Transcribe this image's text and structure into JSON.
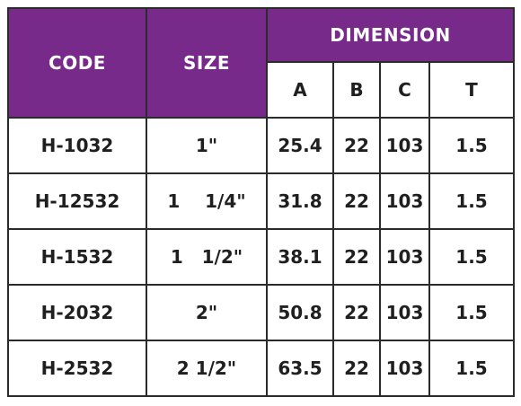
{
  "table": {
    "headers": {
      "code": "CODE",
      "size": "SIZE",
      "dimension": "DIMENSION",
      "sub": [
        "A",
        "B",
        "C",
        "T"
      ]
    },
    "rows": [
      {
        "code": "H-1032",
        "size": "1\"",
        "a": "25.4",
        "b": "22",
        "c": "103",
        "t": "1.5"
      },
      {
        "code": "H-12532",
        "size": "1    1/4\"",
        "a": "31.8",
        "b": "22",
        "c": "103",
        "t": "1.5"
      },
      {
        "code": "H-1532",
        "size": "1   1/2\"",
        "a": "38.1",
        "b": "22",
        "c": "103",
        "t": "1.5"
      },
      {
        "code": "H-2032",
        "size": "2\"",
        "a": "50.8",
        "b": "22",
        "c": "103",
        "t": "1.5"
      },
      {
        "code": "H-2532",
        "size": "2 1/2\"",
        "a": "63.5",
        "b": "22",
        "c": "103",
        "t": "1.5"
      }
    ]
  },
  "colors": {
    "header_purple": "#772a8a",
    "header_text": "#ffffff",
    "border": "#2b2b2b"
  }
}
